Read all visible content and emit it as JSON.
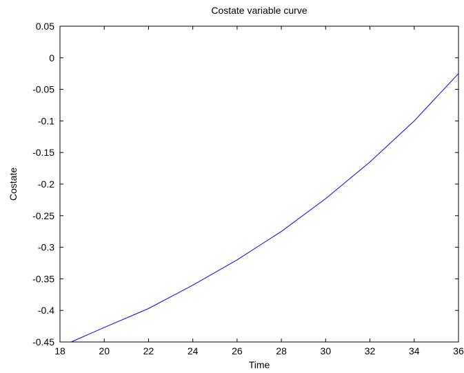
{
  "chart_data": {
    "type": "line",
    "title": "Costate variable curve",
    "xlabel": "Time",
    "ylabel": "Costate",
    "xlim": [
      18,
      36
    ],
    "ylim": [
      -0.45,
      0.05
    ],
    "grid": false,
    "xticks": [
      "18",
      "20",
      "22",
      "24",
      "26",
      "28",
      "30",
      "32",
      "34",
      "36"
    ],
    "yticks": [
      "0.05",
      "0",
      "-0.05",
      "-0.1",
      "-0.15",
      "-0.2",
      "-0.25",
      "-0.3",
      "-0.35",
      "-0.4",
      "-0.45"
    ],
    "series": [
      {
        "color": "#0000ff",
        "x": [
          18.5,
          20,
          22,
          24,
          26,
          28,
          30,
          32,
          34,
          36
        ],
        "y": [
          -0.45,
          -0.427,
          -0.397,
          -0.36,
          -0.32,
          -0.275,
          -0.223,
          -0.165,
          -0.1,
          -0.025
        ]
      }
    ]
  }
}
